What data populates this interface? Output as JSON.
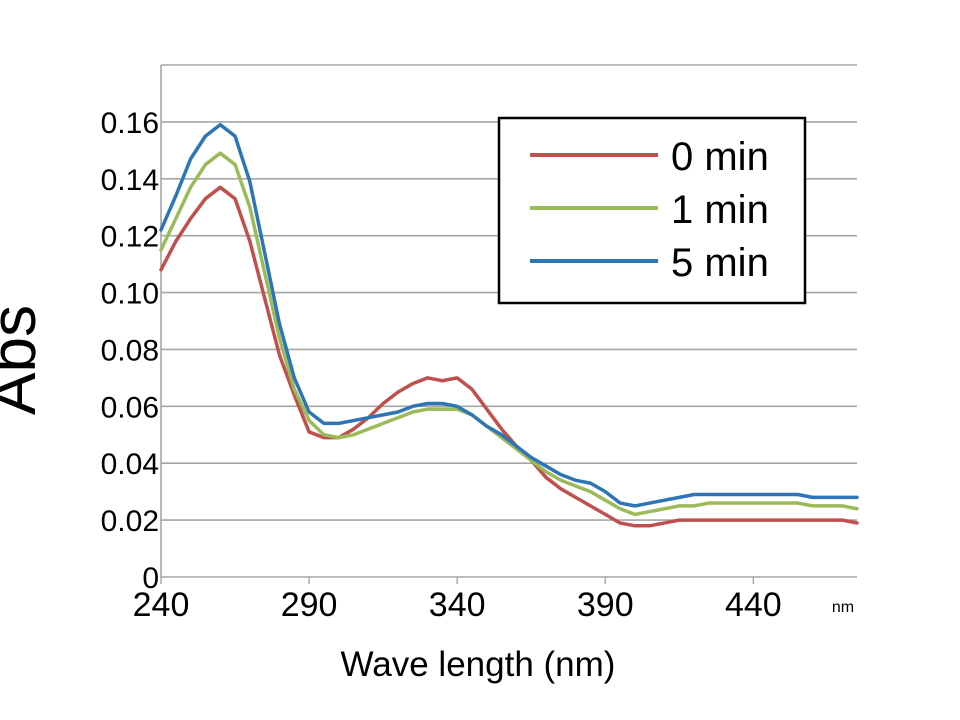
{
  "chart_data": {
    "type": "line",
    "title": "",
    "xlabel": "Wave length (nm)",
    "x_unit_note": "nm",
    "ylabel": "Abs",
    "xlim": [
      240,
      475
    ],
    "ylim": [
      0,
      0.18
    ],
    "xticks": [
      240,
      290,
      340,
      390,
      440
    ],
    "xtick_labels": [
      "240",
      "290",
      "340",
      "390",
      "440"
    ],
    "yticks": [
      0,
      0.02,
      0.04,
      0.06,
      0.08,
      0.1,
      0.12,
      0.14,
      0.16
    ],
    "ytick_labels": [
      "0",
      "0.02",
      "0.04",
      "0.06",
      "0.08",
      "0.10",
      "0.12",
      "0.14",
      "0.16"
    ],
    "grid": "horizontal",
    "legend_position": "top-right",
    "x": [
      240,
      245,
      250,
      255,
      260,
      265,
      270,
      275,
      280,
      285,
      290,
      295,
      300,
      305,
      310,
      315,
      320,
      325,
      330,
      335,
      340,
      345,
      350,
      355,
      360,
      365,
      370,
      375,
      380,
      385,
      390,
      395,
      400,
      405,
      410,
      415,
      420,
      425,
      430,
      435,
      440,
      445,
      450,
      455,
      460,
      465,
      470,
      475
    ],
    "series": [
      {
        "name": "0 min",
        "color": "#c0504d",
        "values": [
          0.108,
          0.118,
          0.126,
          0.133,
          0.137,
          0.133,
          0.118,
          0.098,
          0.078,
          0.064,
          0.051,
          0.049,
          0.049,
          0.052,
          0.056,
          0.061,
          0.065,
          0.068,
          0.07,
          0.069,
          0.07,
          0.066,
          0.059,
          0.052,
          0.046,
          0.041,
          0.035,
          0.031,
          0.028,
          0.025,
          0.022,
          0.019,
          0.018,
          0.018,
          0.019,
          0.02,
          0.02,
          0.02,
          0.02,
          0.02,
          0.02,
          0.02,
          0.02,
          0.02,
          0.02,
          0.02,
          0.02,
          0.019
        ]
      },
      {
        "name": "1 min",
        "color": "#9bbb59",
        "values": [
          0.115,
          0.126,
          0.137,
          0.145,
          0.149,
          0.145,
          0.13,
          0.107,
          0.084,
          0.066,
          0.055,
          0.05,
          0.049,
          0.05,
          0.052,
          0.054,
          0.056,
          0.058,
          0.059,
          0.059,
          0.059,
          0.057,
          0.053,
          0.049,
          0.045,
          0.041,
          0.037,
          0.034,
          0.032,
          0.03,
          0.027,
          0.024,
          0.022,
          0.023,
          0.024,
          0.025,
          0.025,
          0.026,
          0.026,
          0.026,
          0.026,
          0.026,
          0.026,
          0.026,
          0.025,
          0.025,
          0.025,
          0.024
        ]
      },
      {
        "name": "5 min",
        "color": "#2e75b6",
        "values": [
          0.122,
          0.134,
          0.147,
          0.155,
          0.159,
          0.155,
          0.139,
          0.114,
          0.089,
          0.07,
          0.058,
          0.054,
          0.054,
          0.055,
          0.056,
          0.057,
          0.058,
          0.06,
          0.061,
          0.061,
          0.06,
          0.057,
          0.053,
          0.05,
          0.046,
          0.042,
          0.039,
          0.036,
          0.034,
          0.033,
          0.03,
          0.026,
          0.025,
          0.026,
          0.027,
          0.028,
          0.029,
          0.029,
          0.029,
          0.029,
          0.029,
          0.029,
          0.029,
          0.029,
          0.028,
          0.028,
          0.028,
          0.028
        ]
      }
    ]
  }
}
